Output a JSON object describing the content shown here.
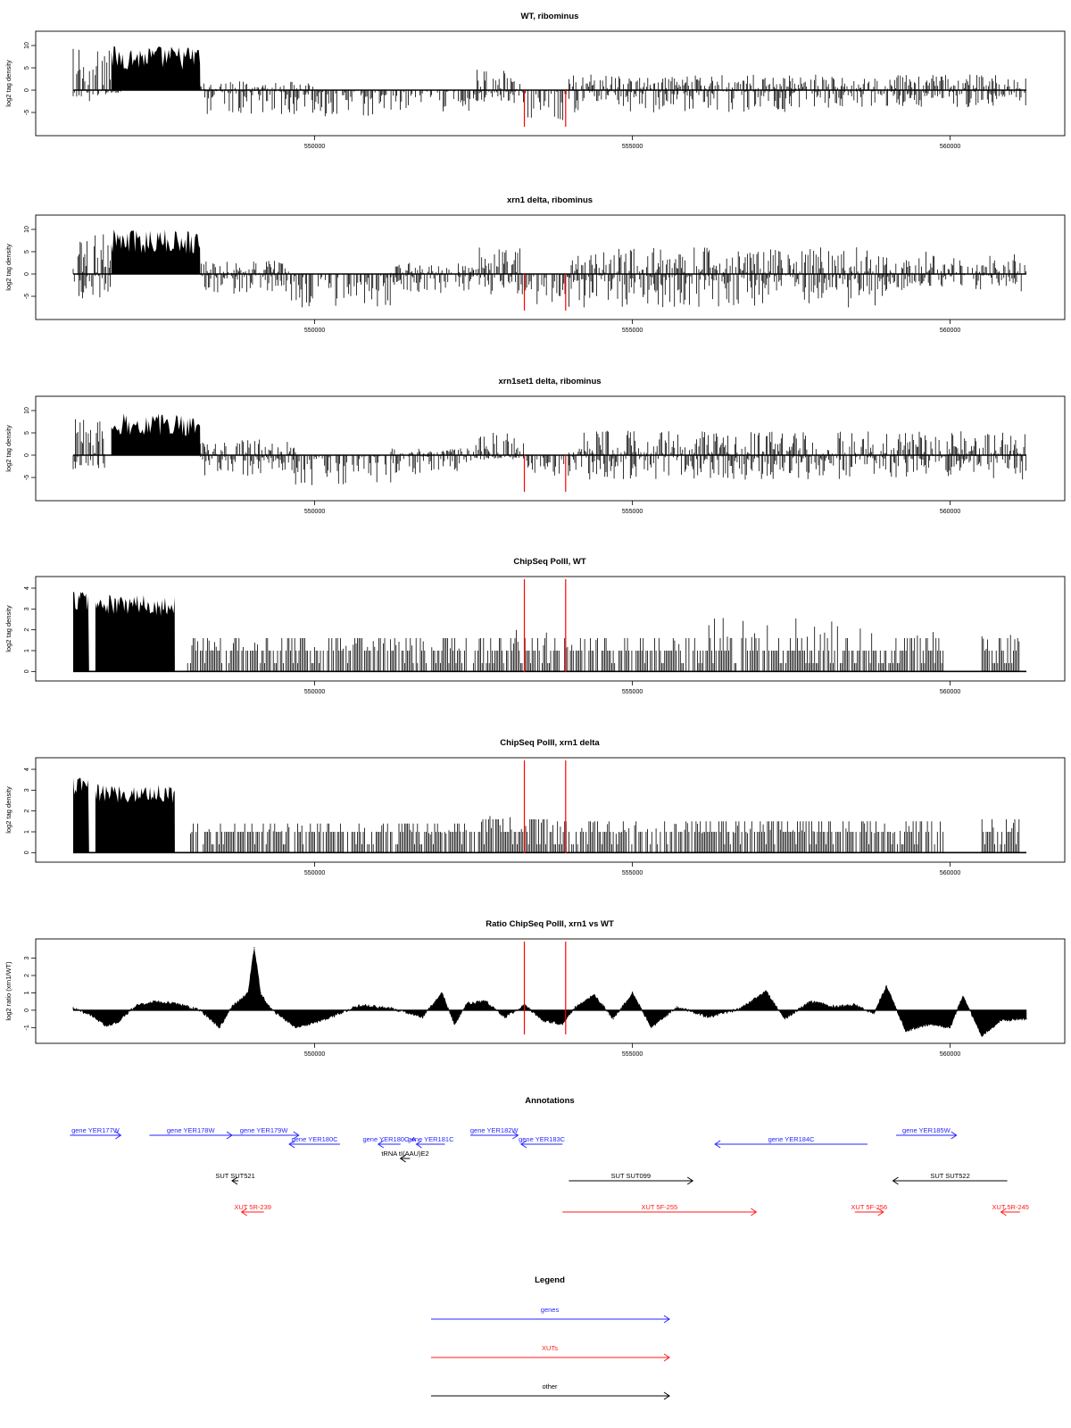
{
  "chart_data": [
    {
      "type": "bar",
      "title": "WT, ribominus",
      "ylabel": "log2 tag density",
      "xlim": [
        546200,
        561200
      ],
      "ylim": [
        -9,
        12
      ],
      "yticks": [
        "10",
        "5",
        "0",
        "-5"
      ],
      "xticks": [
        "550000",
        "555000",
        "560000"
      ],
      "markers": [
        553300,
        553950
      ],
      "segments": [
        {
          "x": [
            546200,
            546800
          ],
          "top": 9.5,
          "bottom": -2.5
        },
        {
          "x": [
            546800,
            547000
          ],
          "top": 2.0,
          "bottom": -1.0
        },
        {
          "x": [
            546800,
            548200
          ],
          "top": 10.0,
          "bottom": 0
        },
        {
          "x": [
            548200,
            550000
          ],
          "top": 2.0,
          "bottom": -5.5
        },
        {
          "x": [
            550000,
            551000
          ],
          "top": 0.5,
          "bottom": -6.0
        },
        {
          "x": [
            551000,
            552500
          ],
          "top": 0.5,
          "bottom": -5.0
        },
        {
          "x": [
            552500,
            553300
          ],
          "top": 5.0,
          "bottom": -3.0
        },
        {
          "x": [
            553300,
            554000
          ],
          "top": 0.5,
          "bottom": -7.0
        },
        {
          "x": [
            554000,
            557500
          ],
          "top": 3.5,
          "bottom": -5.0
        },
        {
          "x": [
            557500,
            561200
          ],
          "top": 3.5,
          "bottom": -4.0
        }
      ]
    },
    {
      "type": "bar",
      "title": "xrn1 delta, ribominus",
      "ylabel": "log2 tag density",
      "xlim": [
        546200,
        561200
      ],
      "ylim": [
        -9,
        12
      ],
      "yticks": [
        "10",
        "5",
        "0",
        "-5"
      ],
      "xticks": [
        "550000",
        "555000",
        "560000"
      ],
      "markers": [
        553300,
        553950
      ],
      "segments": [
        {
          "x": [
            546200,
            546800
          ],
          "top": 9.5,
          "bottom": -6.0
        },
        {
          "x": [
            546800,
            548200
          ],
          "top": 10.0,
          "bottom": 0
        },
        {
          "x": [
            548200,
            549600
          ],
          "top": 3.0,
          "bottom": -4.5
        },
        {
          "x": [
            549600,
            551200
          ],
          "top": 0.5,
          "bottom": -7.5
        },
        {
          "x": [
            551200,
            552500
          ],
          "top": 2.5,
          "bottom": -5.0
        },
        {
          "x": [
            552500,
            553300
          ],
          "top": 6.0,
          "bottom": -5.5
        },
        {
          "x": [
            553300,
            554000
          ],
          "top": 0.5,
          "bottom": -7.5
        },
        {
          "x": [
            554000,
            559000
          ],
          "top": 6.0,
          "bottom": -7.5
        },
        {
          "x": [
            559000,
            561200
          ],
          "top": 5.0,
          "bottom": -4.0
        }
      ]
    },
    {
      "type": "bar",
      "title": "xrn1set1 delta, ribominus",
      "ylabel": "log2 tag density",
      "xlim": [
        546200,
        561200
      ],
      "ylim": [
        -9,
        12
      ],
      "yticks": [
        "10",
        "5",
        "0",
        "-5"
      ],
      "xticks": [
        "550000",
        "555000",
        "560000"
      ],
      "markers": [
        553300,
        553950
      ],
      "segments": [
        {
          "x": [
            546200,
            546700
          ],
          "top": 11.0,
          "bottom": -3.5
        },
        {
          "x": [
            546800,
            548200
          ],
          "top": 9.5,
          "bottom": 0
        },
        {
          "x": [
            548200,
            549700
          ],
          "top": 3.5,
          "bottom": -5.0
        },
        {
          "x": [
            549700,
            551200
          ],
          "top": 0.5,
          "bottom": -7.0
        },
        {
          "x": [
            551200,
            552500
          ],
          "top": 1.5,
          "bottom": -4.5
        },
        {
          "x": [
            552500,
            553300
          ],
          "top": 5.0,
          "bottom": -1.0
        },
        {
          "x": [
            553300,
            554000
          ],
          "top": 0.5,
          "bottom": -5.5
        },
        {
          "x": [
            554000,
            561200
          ],
          "top": 5.5,
          "bottom": -5.5
        }
      ]
    },
    {
      "type": "bar",
      "title": "ChipSeq PolII, WT",
      "ylabel": "log2 tag density",
      "xlim": [
        546200,
        561200
      ],
      "ylim": [
        -0.2,
        4.3
      ],
      "yticks": [
        "4",
        "3",
        "2",
        "1",
        "0"
      ],
      "xticks": [
        "550000",
        "555000",
        "560000"
      ],
      "markers": [
        553300,
        553950
      ],
      "segments": [
        {
          "x": [
            546200,
            546450
          ],
          "top": 4.0,
          "bottom": 0
        },
        {
          "x": [
            546550,
            547800
          ],
          "top": 3.7,
          "bottom": 0
        },
        {
          "x": [
            548000,
            552400
          ],
          "top": 1.6,
          "bottom": 0
        },
        {
          "x": [
            552500,
            553800
          ],
          "top": 2.0,
          "bottom": 0
        },
        {
          "x": [
            553800,
            556000
          ],
          "top": 1.6,
          "bottom": 0
        },
        {
          "x": [
            556000,
            557800
          ],
          "top": 2.6,
          "bottom": 0
        },
        {
          "x": [
            557800,
            559900
          ],
          "top": 2.4,
          "bottom": 0
        },
        {
          "x": [
            560500,
            561100
          ],
          "top": 1.8,
          "bottom": 0
        }
      ]
    },
    {
      "type": "bar",
      "title": "ChipSeq PolII, xrn1 delta",
      "ylabel": "log2 tag density",
      "xlim": [
        546200,
        561200
      ],
      "ylim": [
        -0.2,
        4.3
      ],
      "yticks": [
        "4",
        "3",
        "2",
        "1",
        "0"
      ],
      "xticks": [
        "550000",
        "555000",
        "560000"
      ],
      "markers": [
        553300,
        553950
      ],
      "segments": [
        {
          "x": [
            546200,
            546450
          ],
          "top": 3.7,
          "bottom": 0
        },
        {
          "x": [
            546550,
            547800
          ],
          "top": 3.3,
          "bottom": 0
        },
        {
          "x": [
            548000,
            552400
          ],
          "top": 1.4,
          "bottom": 0
        },
        {
          "x": [
            552400,
            553800
          ],
          "top": 1.8,
          "bottom": 0
        },
        {
          "x": [
            553800,
            559900
          ],
          "top": 1.5,
          "bottom": 0
        },
        {
          "x": [
            560500,
            561100
          ],
          "top": 1.6,
          "bottom": 0
        }
      ]
    },
    {
      "type": "area",
      "title": "Ratio ChipSeq PolII, xrn1 vs WT",
      "ylabel": "log2 ratio (xrn1/WT)",
      "xlim": [
        546200,
        561200
      ],
      "ylim": [
        -1.6,
        3.8
      ],
      "yticks": [
        "3",
        "2",
        "1",
        "0",
        "-1"
      ],
      "xticks": [
        "550000",
        "555000",
        "560000"
      ],
      "markers": [
        553300,
        553950
      ],
      "x": [
        546200,
        546500,
        546700,
        546900,
        547200,
        547500,
        547800,
        548200,
        548500,
        548700,
        548950,
        549050,
        549150,
        549300,
        549700,
        550200,
        550700,
        551200,
        551700,
        552000,
        552200,
        552400,
        552700,
        553000,
        553300,
        553600,
        553900,
        554100,
        554400,
        554700,
        555000,
        555300,
        555700,
        556200,
        556700,
        557100,
        557400,
        557800,
        558200,
        558500,
        558800,
        559000,
        559300,
        559700,
        560000,
        560200,
        560500,
        560800,
        561200
      ],
      "values": [
        0.1,
        -0.3,
        -0.9,
        -0.7,
        0.3,
        0.5,
        0.4,
        0.0,
        -1.0,
        0.2,
        1.0,
        3.6,
        1.0,
        0.1,
        -1.0,
        -0.5,
        0.3,
        0.1,
        -0.4,
        1.0,
        -0.8,
        0.4,
        0.5,
        -0.4,
        0.3,
        -0.6,
        -0.8,
        0.2,
        0.9,
        -0.5,
        1.0,
        -1.0,
        0.2,
        -0.4,
        0.1,
        1.1,
        -0.5,
        0.5,
        0.2,
        0.3,
        -0.2,
        1.4,
        -1.2,
        -0.8,
        -1.0,
        0.8,
        -1.5,
        -0.6,
        -0.5
      ]
    }
  ],
  "annotations": {
    "title": "Annotations",
    "features": [
      {
        "label": "gene YER177W",
        "kind": "gene",
        "start": 546150,
        "end": 546950,
        "row": 0
      },
      {
        "label": "gene YER178W",
        "kind": "gene",
        "start": 547400,
        "end": 548700,
        "row": 0
      },
      {
        "label": "gene YER179W",
        "kind": "gene",
        "start": 548650,
        "end": 549750,
        "row": 0
      },
      {
        "label": "gene YER180C",
        "kind": "gene",
        "start": 549600,
        "end": 550400,
        "row": 1
      },
      {
        "label": "gene YER180C-A",
        "kind": "gene",
        "start": 551000,
        "end": 551350,
        "row": 1
      },
      {
        "label": "gene YER181C",
        "kind": "gene",
        "start": 551600,
        "end": 552050,
        "row": 1
      },
      {
        "label": "gene YER182W",
        "kind": "gene",
        "start": 552450,
        "end": 553200,
        "row": 0
      },
      {
        "label": "gene YER183C",
        "kind": "gene",
        "start": 553250,
        "end": 553900,
        "row": 1
      },
      {
        "label": "gene YER184C",
        "kind": "gene",
        "start": 556300,
        "end": 558700,
        "row": 1
      },
      {
        "label": "gene YER185W",
        "kind": "gene",
        "start": 559150,
        "end": 560100,
        "row": 0
      },
      {
        "label": "tRNA tI(AAU)E2",
        "kind": "other",
        "start": 551350,
        "end": 551500,
        "row": 2
      },
      {
        "label": "SUT SUT521",
        "kind": "other",
        "start": 548700,
        "end": 548800,
        "row": 3
      },
      {
        "label": "SUT SUT099",
        "kind": "other",
        "start": 554000,
        "end": 555950,
        "row": 3
      },
      {
        "label": "SUT SUT522",
        "kind": "other",
        "start": 559100,
        "end": 560900,
        "row": 3
      },
      {
        "label": "XUT 5R-239",
        "kind": "xut",
        "start": 548850,
        "end": 549200,
        "row": 4
      },
      {
        "label": "XUT 5F-255",
        "kind": "xut",
        "start": 553900,
        "end": 556950,
        "row": 4
      },
      {
        "label": "XUT 5F-256",
        "kind": "xut",
        "start": 558500,
        "end": 558950,
        "row": 4
      },
      {
        "label": "XUT 5R-245",
        "kind": "xut",
        "start": 560800,
        "end": 561100,
        "row": 4
      }
    ]
  },
  "legend": {
    "title": "Legend",
    "items": [
      {
        "label": "genes",
        "color": "#2626ff"
      },
      {
        "label": "XUTs",
        "color": "#ff1a1a"
      },
      {
        "label": "other",
        "color": "#000000"
      }
    ]
  },
  "colors": {
    "gene": "#2626ff",
    "xut": "#ff1a1a",
    "other": "#000000",
    "marker": "#ff0000"
  }
}
